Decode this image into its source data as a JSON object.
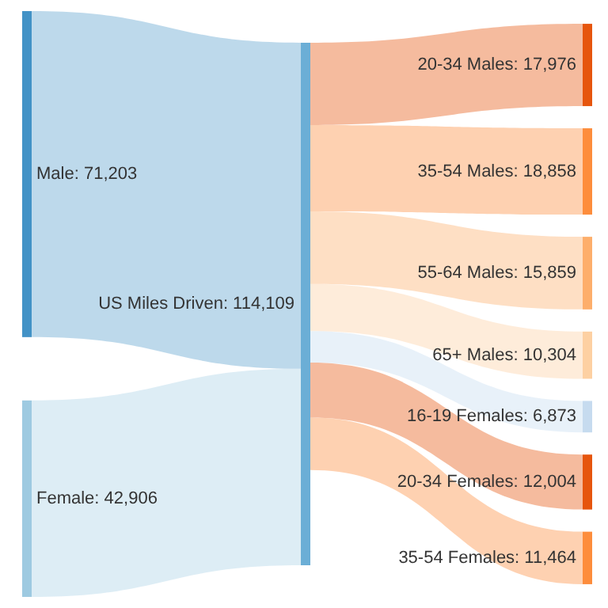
{
  "chart_data": {
    "type": "other",
    "categories": [
      "Male",
      "Female",
      "US Miles Driven",
      "20-34 Males",
      "35-54 Males",
      "55-64 Males",
      "65+ Males",
      "16-19 Females",
      "20-34 Females",
      "35-54 Females"
    ],
    "values": [
      71203,
      42906,
      114109,
      17976,
      18858,
      15859,
      10304,
      6873,
      12004,
      11464
    ],
    "value_labels": [
      ": 71,203",
      ": 42,906",
      ": 114,109",
      ": 17,976",
      ": 18,858",
      ": 15,859",
      ": 10,304",
      ": 6,873",
      ": 12,004",
      ": 11,464"
    ],
    "colors": [
      "#4292c6",
      "#9ecae1",
      "#6baed6",
      "#e6550d",
      "#fd8d3c",
      "#fdae6b",
      "#fdd0a2",
      "#c6dbef",
      "#e6550d",
      "#fd8d3c"
    ]
  }
}
